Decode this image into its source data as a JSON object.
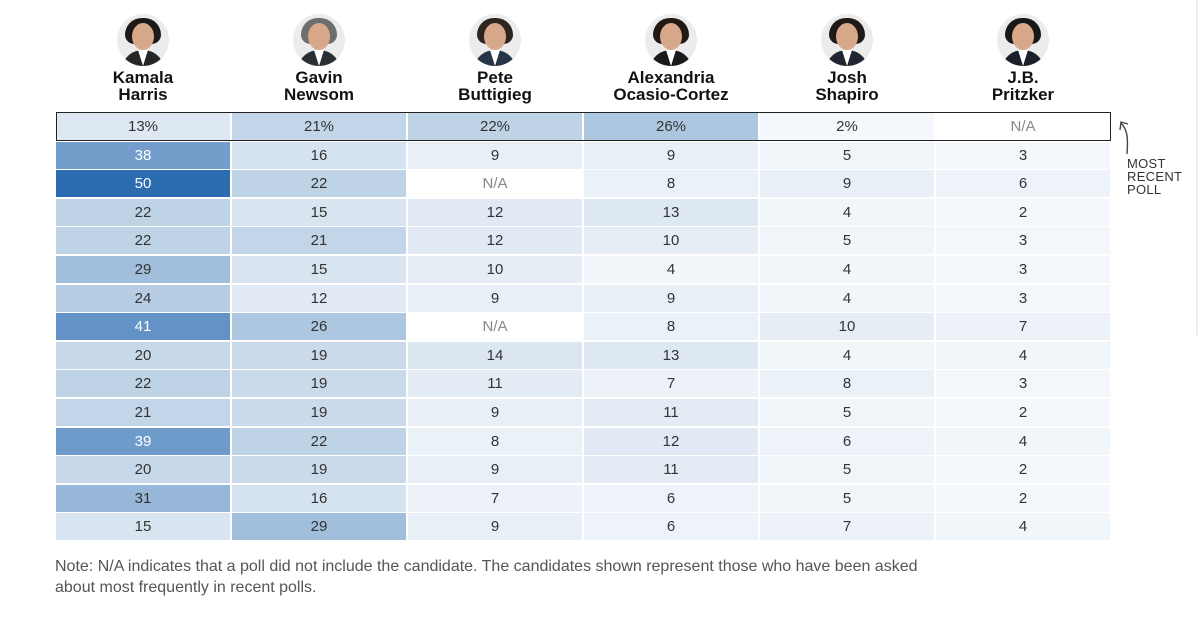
{
  "candidates": [
    {
      "name": "Kamala\nHarris",
      "hair": "#1c1a18",
      "suit": "#242628"
    },
    {
      "name": "Gavin\nNewsom",
      "hair": "#6e6e6e",
      "suit": "#2a2f36"
    },
    {
      "name": "Pete\nButtigieg",
      "hair": "#2e2420",
      "suit": "#273548"
    },
    {
      "name": "Alexandria\nOcasio-Cortez",
      "hair": "#221814",
      "suit": "#1a1a1a"
    },
    {
      "name": "Josh\nShapiro",
      "hair": "#1e1a18",
      "suit": "#202631"
    },
    {
      "name": "J.B.\nPritzker",
      "hair": "#181818",
      "suit": "#1c2029"
    }
  ],
  "chart_data": {
    "type": "table",
    "most_recent_row": [
      "13%",
      "21%",
      "22%",
      "26%",
      "2%",
      "N/A"
    ],
    "rows": [
      [
        "38",
        "16",
        "9",
        "9",
        "5",
        "3"
      ],
      [
        "50",
        "22",
        "N/A",
        "8",
        "9",
        "6"
      ],
      [
        "22",
        "15",
        "12",
        "13",
        "4",
        "2"
      ],
      [
        "22",
        "21",
        "12",
        "10",
        "5",
        "3"
      ],
      [
        "29",
        "15",
        "10",
        "4",
        "4",
        "3"
      ],
      [
        "24",
        "12",
        "9",
        "9",
        "4",
        "3"
      ],
      [
        "41",
        "26",
        "N/A",
        "8",
        "10",
        "7"
      ],
      [
        "20",
        "19",
        "14",
        "13",
        "4",
        "4"
      ],
      [
        "22",
        "19",
        "11",
        "7",
        "8",
        "3"
      ],
      [
        "21",
        "19",
        "9",
        "11",
        "5",
        "2"
      ],
      [
        "39",
        "22",
        "8",
        "12",
        "6",
        "4"
      ],
      [
        "20",
        "19",
        "9",
        "11",
        "5",
        "2"
      ],
      [
        "31",
        "16",
        "7",
        "6",
        "5",
        "2"
      ],
      [
        "15",
        "29",
        "9",
        "6",
        "7",
        "4"
      ]
    ],
    "color_scale": {
      "low": "#f5f8fb",
      "high": "#2c6db2",
      "max_value": 50,
      "na_color": "#ffffff"
    }
  },
  "annotation": {
    "most_recent": "MOST\nRECENT\nPOLL"
  },
  "note": "Note: N/A indicates that a poll did not include the candidate. The candidates shown represent those who have been asked about most frequently in recent polls."
}
